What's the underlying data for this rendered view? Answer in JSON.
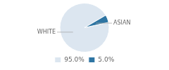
{
  "chart_data": {
    "type": "pie",
    "categories": [
      "WHITE",
      "ASIAN"
    ],
    "values": [
      95.0,
      5.0
    ],
    "value_labels": [
      "95.0%",
      "5.0%"
    ],
    "colors": [
      "#dce6f0",
      "#2e75a3"
    ],
    "legend": "bottom"
  }
}
